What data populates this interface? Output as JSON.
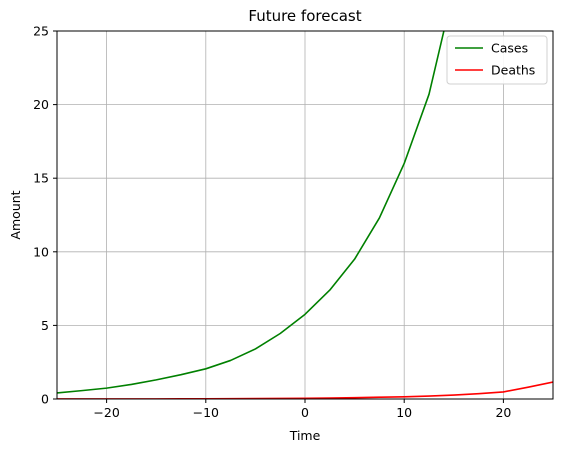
{
  "chart_data": {
    "type": "line",
    "title": "Future forecast",
    "xlabel": "Time",
    "ylabel": "Amount",
    "xlim": [
      -25,
      25
    ],
    "ylim": [
      0,
      25
    ],
    "grid": true,
    "legend_position": "top-right",
    "x_ticks": [
      -20,
      -10,
      0,
      10,
      20
    ],
    "y_ticks": [
      0,
      5,
      10,
      15,
      20,
      25
    ],
    "x_tick_labels": [
      "−20",
      "−10",
      "0",
      "10",
      "20"
    ],
    "y_tick_labels": [
      "0",
      "5",
      "10",
      "15",
      "20",
      "25"
    ],
    "x": [
      -25,
      -22.5,
      -20,
      -17.5,
      -15,
      -12.5,
      -10,
      -7.5,
      -5,
      -2.5,
      0,
      2.5,
      5,
      7.5,
      10,
      12.5,
      14,
      15,
      17.5,
      20,
      22.5,
      25
    ],
    "series": [
      {
        "name": "Cases",
        "color": "#008000",
        "values": [
          0.41,
          0.57,
          0.74,
          0.99,
          1.3,
          1.65,
          2.05,
          2.62,
          3.4,
          4.45,
          5.75,
          7.4,
          9.5,
          12.3,
          16.0,
          20.7,
          25.0,
          null,
          null,
          null,
          null,
          null
        ]
      },
      {
        "name": "Deaths",
        "color": "#ff0000",
        "values": [
          0.003,
          0.004,
          0.005,
          0.007,
          0.009,
          0.012,
          0.016,
          0.021,
          0.028,
          0.037,
          0.05,
          0.066,
          0.087,
          0.12,
          0.15,
          0.2,
          null,
          0.27,
          0.36,
          0.48,
          0.8,
          1.15
        ]
      }
    ]
  }
}
